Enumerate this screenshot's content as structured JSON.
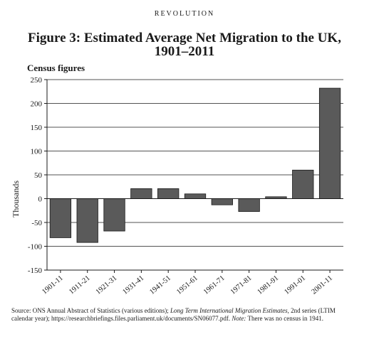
{
  "page": {
    "running_head": "REVOLUTION"
  },
  "chart_data": {
    "type": "bar",
    "title": "Figure 3: Estimated Average Net Migration to the UK, 1901–2011",
    "subtitle": "Census figures",
    "ylabel": "Thousands",
    "xlabel": "",
    "categories": [
      "1901-11",
      "1911-21",
      "1921-31",
      "1931-41",
      "1941-51",
      "1951-61",
      "1961-71",
      "1971-81",
      "1981-91",
      "1991-01",
      "2001-11"
    ],
    "values": [
      -82,
      -92,
      -68,
      21,
      21,
      10,
      -13,
      -27,
      4,
      60,
      232
    ],
    "ylim": [
      -150,
      250
    ],
    "yticks": [
      -150,
      -100,
      -50,
      0,
      50,
      100,
      150,
      200,
      250
    ],
    "grid": true,
    "legend": "none",
    "bar_color": "#5a5a5a"
  },
  "source": {
    "part1": "Source: ONS Annual Abstract of Statistics (various editions); ",
    "italic1": "Long Term International Migration Estimates",
    "part2": ", 2nd series (LTIM calendar year); https://researchbriefings.files.parliament.uk/documents/SN06077.pdf. ",
    "italic2": "Note:",
    "part3": " There was no census in 1941."
  }
}
